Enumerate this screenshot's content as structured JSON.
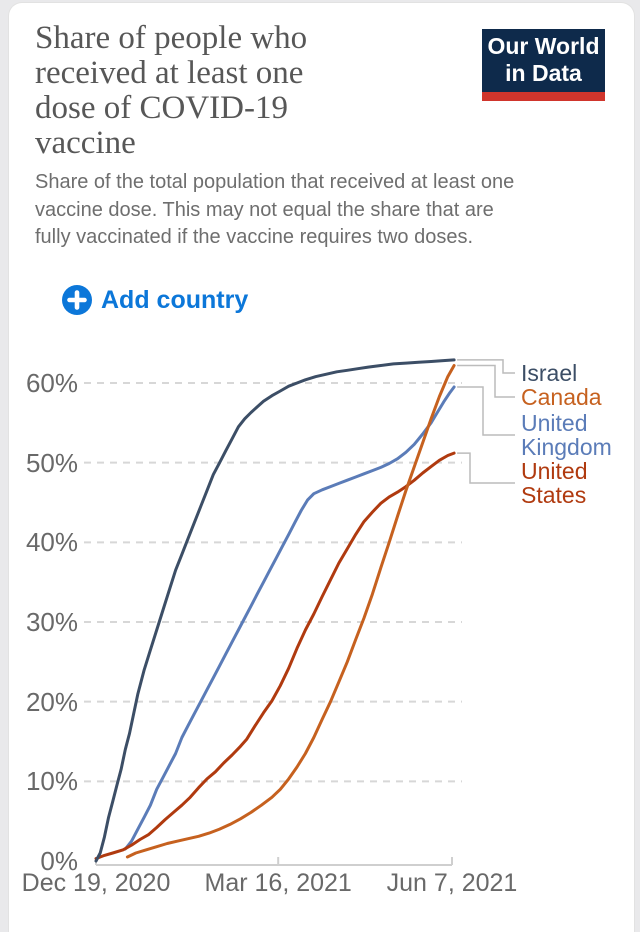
{
  "header": {
    "title": "Share of people who received at least one dose of COVID-19 vaccine",
    "title_lines": [
      "Share of people who",
      "received at least one",
      "dose of COVID-19",
      "vaccine"
    ],
    "subtitle": "Share of the total population that received at least one vaccine dose. This may not equal the share that are fully vaccinated if the vaccine requires two doses.",
    "subtitle_lines": [
      "Share of the total population that received at least one",
      "vaccine dose. This may not equal the share that are",
      "fully vaccinated if the vaccine requires two doses."
    ],
    "logo": {
      "line1": "Our World",
      "line2": "in Data"
    }
  },
  "controls": {
    "add_country_label": "Add country"
  },
  "colors": {
    "accent_blue": "#0C77D9",
    "logo_navy": "#0E2A4B",
    "logo_red": "#D0352C",
    "grid": "#d7d7d7",
    "axis": "#cfcfcf",
    "text_gray": "#696969"
  },
  "chart_data": {
    "type": "line",
    "title": "Share of people who received at least one dose of COVID-19 vaccine",
    "xlabel": "",
    "ylabel": "",
    "grid": true,
    "legend_position": "right",
    "ylim": [
      0,
      65
    ],
    "x_axis": {
      "ticks": [
        "Dec 19, 2020",
        "Mar 16, 2021",
        "Jun 7, 2021"
      ],
      "tick_days": [
        0,
        87,
        170
      ],
      "range_dates": [
        "Dec 19, 2020",
        "Jun 8, 2021"
      ]
    },
    "y_axis": {
      "ticks": [
        "0%",
        "10%",
        "20%",
        "30%",
        "40%",
        "50%",
        "60%"
      ],
      "tick_values": [
        0,
        10,
        20,
        30,
        40,
        50,
        60
      ]
    },
    "series": [
      {
        "name": "Israel",
        "color": "#3C4E66",
        "final_value_pct": 62.9,
        "points": [
          [
            0,
            0
          ],
          [
            2,
            1
          ],
          [
            4,
            3
          ],
          [
            6,
            5.5
          ],
          [
            8,
            7.5
          ],
          [
            10,
            9.5
          ],
          [
            12,
            11.5
          ],
          [
            14,
            14
          ],
          [
            16,
            16
          ],
          [
            18,
            18.5
          ],
          [
            20,
            21
          ],
          [
            23,
            24
          ],
          [
            26,
            26.5
          ],
          [
            29,
            29
          ],
          [
            32,
            31.5
          ],
          [
            35,
            34
          ],
          [
            38,
            36.5
          ],
          [
            41,
            38.5
          ],
          [
            44,
            40.5
          ],
          [
            47,
            42.5
          ],
          [
            50,
            44.5
          ],
          [
            53,
            46.5
          ],
          [
            56,
            48.5
          ],
          [
            59,
            50
          ],
          [
            62,
            51.5
          ],
          [
            65,
            53
          ],
          [
            68,
            54.5
          ],
          [
            71,
            55.5
          ],
          [
            74,
            56.3
          ],
          [
            77,
            57
          ],
          [
            80,
            57.7
          ],
          [
            84,
            58.4
          ],
          [
            88,
            59
          ],
          [
            92,
            59.6
          ],
          [
            96,
            60
          ],
          [
            100,
            60.4
          ],
          [
            105,
            60.8
          ],
          [
            110,
            61.1
          ],
          [
            115,
            61.4
          ],
          [
            120,
            61.6
          ],
          [
            125,
            61.8
          ],
          [
            130,
            62
          ],
          [
            136,
            62.2
          ],
          [
            142,
            62.4
          ],
          [
            148,
            62.5
          ],
          [
            154,
            62.6
          ],
          [
            160,
            62.7
          ],
          [
            165,
            62.8
          ],
          [
            171,
            62.9
          ]
        ]
      },
      {
        "name": "Canada",
        "color": "#C6611F",
        "final_value_pct": 62.2,
        "points": [
          [
            15,
            0.5
          ],
          [
            19,
            1
          ],
          [
            24,
            1.4
          ],
          [
            29,
            1.8
          ],
          [
            34,
            2.2
          ],
          [
            39,
            2.5
          ],
          [
            44,
            2.8
          ],
          [
            49,
            3.1
          ],
          [
            54,
            3.5
          ],
          [
            59,
            4
          ],
          [
            64,
            4.6
          ],
          [
            69,
            5.3
          ],
          [
            74,
            6.1
          ],
          [
            79,
            7
          ],
          [
            84,
            8
          ],
          [
            88,
            9
          ],
          [
            92,
            10.3
          ],
          [
            96,
            11.8
          ],
          [
            100,
            13.5
          ],
          [
            104,
            15.5
          ],
          [
            108,
            17.8
          ],
          [
            112,
            20
          ],
          [
            116,
            22.5
          ],
          [
            120,
            25
          ],
          [
            124,
            27.8
          ],
          [
            128,
            30.5
          ],
          [
            132,
            33.5
          ],
          [
            136,
            36.8
          ],
          [
            140,
            40
          ],
          [
            144,
            43.3
          ],
          [
            148,
            46.5
          ],
          [
            152,
            49.5
          ],
          [
            156,
            52.5
          ],
          [
            160,
            55.5
          ],
          [
            164,
            58.3
          ],
          [
            168,
            60.8
          ],
          [
            171,
            62.2
          ]
        ]
      },
      {
        "name": "United Kingdom",
        "color": "#5B7CB8",
        "final_value_pct": 59.5,
        "points": [
          [
            14,
            1.5
          ],
          [
            17,
            2.5
          ],
          [
            20,
            4
          ],
          [
            23,
            5.5
          ],
          [
            26,
            7
          ],
          [
            29,
            9
          ],
          [
            32,
            10.5
          ],
          [
            35,
            12
          ],
          [
            38,
            13.5
          ],
          [
            41,
            15.5
          ],
          [
            44,
            17
          ],
          [
            47,
            18.5
          ],
          [
            50,
            20
          ],
          [
            53,
            21.5
          ],
          [
            56,
            23
          ],
          [
            59,
            24.5
          ],
          [
            62,
            26
          ],
          [
            65,
            27.5
          ],
          [
            68,
            29
          ],
          [
            71,
            30.5
          ],
          [
            74,
            32
          ],
          [
            77,
            33.5
          ],
          [
            80,
            35
          ],
          [
            83,
            36.5
          ],
          [
            86,
            38
          ],
          [
            89,
            39.5
          ],
          [
            92,
            41
          ],
          [
            95,
            42.5
          ],
          [
            98,
            44
          ],
          [
            101,
            45.3
          ],
          [
            104,
            46.1
          ],
          [
            108,
            46.6
          ],
          [
            112,
            47
          ],
          [
            116,
            47.4
          ],
          [
            120,
            47.8
          ],
          [
            124,
            48.2
          ],
          [
            128,
            48.6
          ],
          [
            132,
            49
          ],
          [
            136,
            49.4
          ],
          [
            140,
            49.9
          ],
          [
            144,
            50.5
          ],
          [
            148,
            51.3
          ],
          [
            152,
            52.3
          ],
          [
            156,
            53.6
          ],
          [
            160,
            55
          ],
          [
            163,
            56.3
          ],
          [
            166,
            57.6
          ],
          [
            169,
            58.8
          ],
          [
            171,
            59.5
          ]
        ]
      },
      {
        "name": "United States",
        "color": "#B03A0F",
        "final_value_pct": 51.2,
        "points": [
          [
            0,
            0.3
          ],
          [
            4,
            0.7
          ],
          [
            8,
            1
          ],
          [
            13,
            1.4
          ],
          [
            17,
            2
          ],
          [
            21,
            2.7
          ],
          [
            25,
            3.3
          ],
          [
            29,
            4.2
          ],
          [
            33,
            5.2
          ],
          [
            37,
            6.1
          ],
          [
            41,
            7
          ],
          [
            45,
            8
          ],
          [
            49,
            9.2
          ],
          [
            53,
            10.3
          ],
          [
            57,
            11.2
          ],
          [
            61,
            12.3
          ],
          [
            65,
            13.3
          ],
          [
            69,
            14.4
          ],
          [
            72,
            15.3
          ],
          [
            76,
            17
          ],
          [
            80,
            18.6
          ],
          [
            84,
            20.1
          ],
          [
            88,
            22
          ],
          [
            92,
            24.2
          ],
          [
            96,
            26.7
          ],
          [
            100,
            29
          ],
          [
            104,
            31
          ],
          [
            108,
            33.2
          ],
          [
            112,
            35.3
          ],
          [
            116,
            37.4
          ],
          [
            120,
            39.2
          ],
          [
            124,
            41
          ],
          [
            128,
            42.6
          ],
          [
            132,
            43.8
          ],
          [
            136,
            44.9
          ],
          [
            140,
            45.7
          ],
          [
            144,
            46.3
          ],
          [
            148,
            47
          ],
          [
            152,
            47.8
          ],
          [
            156,
            48.7
          ],
          [
            160,
            49.5
          ],
          [
            164,
            50.3
          ],
          [
            168,
            50.9
          ],
          [
            171,
            51.2
          ]
        ]
      }
    ]
  }
}
